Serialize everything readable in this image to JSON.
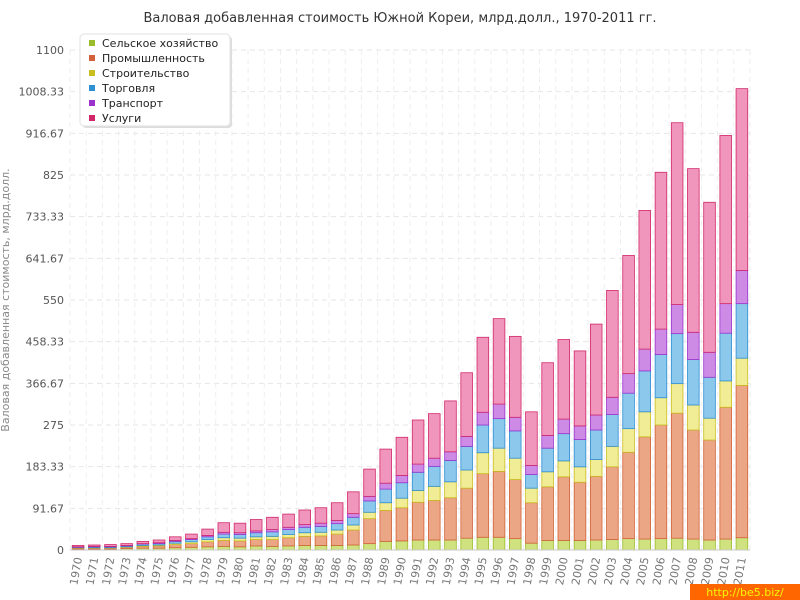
{
  "colors": {
    "watermark_bg": "#ff6600",
    "watermark_text": "#ffff00"
  },
  "watermark": "http://be5.biz/",
  "chart_data": {
    "type": "bar",
    "stacked": true,
    "title": "Валовая добавленная стоимость Южной Кореи, млрд.долл., 1970-2011 гг.",
    "ylabel": "Валовая добавленная стоимость, млрд.долл.",
    "xlabel": "",
    "ylim": [
      0,
      1100
    ],
    "yticks": [
      "0",
      "91.67",
      "183.33",
      "275",
      "366.67",
      "458.33",
      "550",
      "641.67",
      "733.33",
      "825",
      "916.67",
      "1008.33",
      "1100"
    ],
    "grid": true,
    "legend_position": "top-left",
    "categories": [
      "1970",
      "1971",
      "1972",
      "1973",
      "1974",
      "1975",
      "1976",
      "1977",
      "1978",
      "1979",
      "1980",
      "1981",
      "1982",
      "1983",
      "1984",
      "1985",
      "1986",
      "1987",
      "1988",
      "1989",
      "1990",
      "1991",
      "1992",
      "1993",
      "1994",
      "1995",
      "1996",
      "1997",
      "1998",
      "1999",
      "2000",
      "2001",
      "2002",
      "2003",
      "2004",
      "2005",
      "2006",
      "2007",
      "2008",
      "2009",
      "2010",
      "2011"
    ],
    "series": [
      {
        "name": "Сельское хозяйство",
        "fill": "#cfe27f",
        "stroke": "#9abb2a",
        "values": [
          2,
          2,
          2,
          3,
          4,
          4,
          5,
          6,
          7,
          8,
          7,
          9,
          8,
          9,
          10,
          10,
          10,
          11,
          14,
          19,
          20,
          22,
          22,
          22,
          26,
          28,
          28,
          25,
          15,
          21,
          21,
          21,
          22,
          23,
          25,
          24,
          25,
          26,
          24,
          22,
          24,
          27
        ]
      },
      {
        "name": "Промышленность",
        "fill": "#eba685",
        "stroke": "#d2603a",
        "values": [
          2,
          2,
          2,
          3,
          4,
          5,
          7,
          8,
          11,
          13,
          13,
          14,
          15,
          18,
          20,
          21,
          25,
          33,
          55,
          68,
          73,
          83,
          87,
          93,
          110,
          140,
          145,
          130,
          89,
          118,
          140,
          128,
          140,
          160,
          190,
          225,
          250,
          275,
          240,
          220,
          290,
          335
        ]
      },
      {
        "name": "Строительство",
        "fill": "#f1ec96",
        "stroke": "#c9be1f",
        "values": [
          1,
          1,
          1,
          1,
          2,
          2,
          3,
          4,
          5,
          6,
          6,
          6,
          7,
          7,
          8,
          8,
          9,
          11,
          14,
          17,
          21,
          26,
          31,
          35,
          40,
          46,
          51,
          47,
          32,
          33,
          35,
          34,
          37,
          45,
          52,
          55,
          60,
          65,
          55,
          48,
          58,
          60
        ]
      },
      {
        "name": "Торговля",
        "fill": "#8cc7ec",
        "stroke": "#2e8fd2",
        "values": [
          1,
          2,
          2,
          2,
          3,
          3,
          4,
          5,
          6,
          8,
          8,
          9,
          10,
          11,
          12,
          13,
          14,
          17,
          25,
          30,
          34,
          40,
          44,
          47,
          52,
          61,
          65,
          60,
          30,
          52,
          60,
          60,
          65,
          70,
          78,
          90,
          95,
          110,
          100,
          90,
          105,
          120
        ]
      },
      {
        "name": "Транспорт",
        "fill": "#cd8be6",
        "stroke": "#9933cc",
        "values": [
          1,
          1,
          1,
          1,
          1,
          2,
          2,
          2,
          3,
          4,
          4,
          4,
          5,
          5,
          6,
          7,
          7,
          8,
          10,
          13,
          16,
          18,
          18,
          19,
          22,
          28,
          32,
          30,
          20,
          28,
          32,
          30,
          33,
          38,
          43,
          48,
          56,
          64,
          60,
          55,
          65,
          73
        ]
      },
      {
        "name": "Услуги",
        "fill": "#f096bc",
        "stroke": "#d12769",
        "values": [
          3,
          3,
          4,
          4,
          5,
          6,
          8,
          10,
          14,
          21,
          21,
          25,
          27,
          29,
          32,
          34,
          39,
          48,
          60,
          75,
          84,
          97,
          98,
          112,
          140,
          165,
          188,
          178,
          118,
          160,
          175,
          165,
          200,
          235,
          260,
          305,
          345,
          400,
          360,
          330,
          370,
          400
        ]
      }
    ]
  }
}
